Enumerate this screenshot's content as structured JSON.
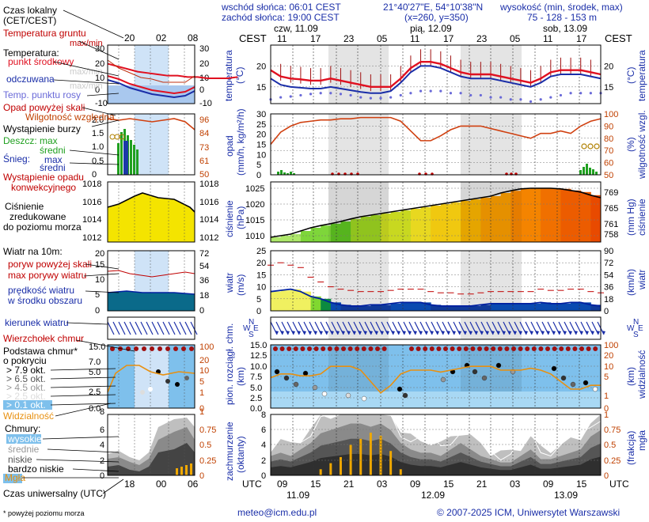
{
  "header": {
    "sunrise": "wschód słońca: 06:01 CEST",
    "sunset": "zachód słońca: 19:00 CEST",
    "coords": "21°40'27\"E, 54°10'38\"N",
    "grid": "(x=260, y=350)",
    "height_label": "wysokość (min, środek, max)",
    "height_values": "75 - 128 - 153 m"
  },
  "time_axis": {
    "tz_label": "CEST",
    "day_labels": [
      "czw, 11.09",
      "pią, 12.09",
      "sob, 13.09"
    ],
    "hour_ticks_top": [
      "11",
      "17",
      "23",
      "05",
      "11",
      "17",
      "23",
      "05",
      "11",
      "17"
    ],
    "utc_label": "UTC",
    "hour_ticks_bottom": [
      "09",
      "15",
      "21",
      "03",
      "09",
      "15",
      "21",
      "03",
      "09",
      "15"
    ],
    "date_labels_bottom": [
      "11.09",
      "12.09",
      "13.09"
    ]
  },
  "legend": {
    "local_time": "Czas lokalny",
    "local_time2": "(CET/CEST)",
    "local_ticks": [
      "20",
      "02",
      "08"
    ],
    "soil_temp": "Temperatura gruntu",
    "soil_sub": "max/min",
    "temp": "Temperatura:",
    "mid_point": "punkt środkowy",
    "max_min": "max/min",
    "perceived": "odczuwana",
    "dew": "Temp. punktu rosy",
    "precip_over": "Opad powyżej skali",
    "rel_hum": "Wilgotność względna",
    "storm": "Wystąpienie burzy",
    "rain": "Deszcz: max",
    "rain_avg": "średni",
    "snow": "Śnieg:",
    "snow_max": "max",
    "snow_avg": "średni",
    "conv": "Wystąpienie opadu",
    "conv2": "konwekcyjnego",
    "pressure": "Ciśnienie",
    "pressure2": "zredukowane",
    "pressure3": "do poziomu morza",
    "wind": "Wiatr na 10m:",
    "gust_over": "poryw powyżej skali",
    "gust_max": "max porywy wiatru",
    "wind_speed": "prędkość wiatru",
    "wind_speed2": "w środku obszaru",
    "wind_dir": "kierunek wiatru",
    "cloud_top": "Wierzchołek chmur",
    "cloud_base": "Podstawa chmur*",
    "cloud_base2": "o pokryciu",
    "okt": [
      "> 7.9 okt.",
      "> 6.5 okt.",
      "> 4.5 okt.",
      "> 2.5 okt.",
      "> 0.1 okt."
    ],
    "visibility": "Widzialność",
    "clouds": "Chmury:",
    "cloud_levels": [
      "wysokie",
      "średnie",
      "niskie",
      "bardzo niskie"
    ],
    "fog": "Mgła",
    "utc_time": "Czas uniwersalny (UTC)",
    "utc_ticks": [
      "18",
      "00",
      "06"
    ],
    "footnote": "* powyżej poziomu morza"
  },
  "panel_labels": {
    "temperature": "temperatura",
    "temp_unit": "(°C)",
    "precip": "opad",
    "precip_unit": "(mm/h, kg/m²/h)",
    "humidity": "wilgotność wzgl.",
    "humidity_unit": "(%)",
    "pressure": "ciśnienie",
    "pressure_unit": "(hPa)",
    "pressure_unit2": "(mm Hg)",
    "wind": "wiatr",
    "wind_unit": "(m/s)",
    "wind_unit2": "(km/h)",
    "cloud_base": "pion. rozciągł. chm.",
    "cloud_base_unit": "(km)",
    "visibility": "widzialność",
    "visibility_unit": "(km)",
    "cloud_cover": "zachmurzenie",
    "cloud_cover_unit": "(oktanty)",
    "fog": "mgła",
    "fog_unit": "(frakcja)"
  },
  "footer": {
    "email": "meteo@icm.edu.pl",
    "copyright": "© 2007-2025 ICM, Uniwersytet Warszawski"
  },
  "chart_data": [
    {
      "type": "line",
      "title": "",
      "ylabel": "temperatura (°C)",
      "ylim": [
        11,
        25
      ],
      "y_ticks": [
        15,
        20
      ],
      "series": [
        {
          "name": "temperatura",
          "values": [
            19,
            17.5,
            17,
            16.8,
            16.5,
            16.5,
            17,
            16.5,
            16,
            15.5,
            15,
            15,
            15,
            17,
            19.5,
            21,
            21,
            20.5,
            19.5,
            18.5,
            18,
            18,
            18,
            17.5,
            17,
            16.5,
            16,
            17,
            18.5,
            19,
            19,
            19,
            18.5,
            18
          ]
        },
        {
          "name": "odczuwana",
          "values": [
            17,
            15.5,
            15,
            14.8,
            14.6,
            14.6,
            15,
            14.6,
            14.2,
            13.8,
            13.5,
            13.5,
            14,
            16,
            18.5,
            20,
            20,
            19.5,
            18.5,
            17.5,
            17,
            17,
            17,
            16.5,
            16,
            15.5,
            15,
            16,
            17.5,
            18,
            18,
            18,
            17.5,
            17
          ]
        },
        {
          "name": "punkt rosy",
          "values": [
            13.5,
            14,
            14.2,
            14.5,
            14.8,
            15,
            15,
            14.8,
            14.5,
            14,
            13.8,
            13.8,
            14,
            14.5,
            15,
            15.5,
            15.5,
            15.5,
            15,
            15,
            14.5,
            14.5,
            14,
            14,
            13.5,
            13.5,
            13,
            13.5,
            14,
            14.5,
            15,
            15,
            15,
            15
          ]
        }
      ]
    },
    {
      "type": "line",
      "title": "",
      "ylabel": "wilgotność wzgl. (%)",
      "ylim": [
        50,
        100
      ],
      "y_ticks": [
        50,
        60,
        70,
        80,
        90,
        100
      ],
      "secondary_ylabel": "opad (mm/h, kg/m²/h)",
      "secondary_ticks": [
        0,
        5,
        10,
        15,
        20,
        25,
        30
      ],
      "series": [
        {
          "name": "wilgotność",
          "values": [
            75,
            85,
            90,
            93,
            94,
            95,
            95,
            96,
            96,
            97,
            97,
            97,
            97,
            94,
            86,
            78,
            78,
            82,
            87,
            90,
            90,
            90,
            88,
            86,
            84,
            82,
            80,
            84,
            84,
            86,
            84,
            90,
            94,
            96
          ]
        }
      ]
    },
    {
      "type": "area",
      "title": "",
      "ylabel": "ciśnienie (hPa)",
      "ylim": [
        1008,
        1027
      ],
      "y_ticks": [
        1010,
        1015,
        1020,
        1025
      ],
      "secondary_ylabel": "(mm Hg)",
      "secondary_ticks": [
        758,
        761,
        765,
        769
      ],
      "series": [
        {
          "name": "ciśnienie",
          "values": [
            1009.5,
            1010,
            1010.5,
            1011.5,
            1012.5,
            1013.2,
            1013.8,
            1014.5,
            1015.3,
            1016,
            1016.5,
            1017,
            1017.5,
            1018,
            1018.5,
            1019,
            1019.5,
            1020,
            1020.5,
            1021,
            1021.5,
            1022,
            1022.5,
            1023.5,
            1024.2,
            1024.8,
            1025,
            1025,
            1025,
            1024.8,
            1024.3,
            1023.8,
            1022.8,
            1022
          ]
        }
      ]
    },
    {
      "type": "area",
      "title": "",
      "ylabel": "wiatr (m/s)",
      "ylim": [
        0,
        25
      ],
      "y_ticks": [
        0,
        5,
        10,
        15,
        20,
        25
      ],
      "secondary_ylabel": "(km/h)",
      "secondary_ticks": [
        0,
        18,
        36,
        54,
        72,
        90
      ],
      "series": [
        {
          "name": "prędkość",
          "values": [
            8,
            8.5,
            9,
            8,
            6,
            5,
            3.5,
            2.5,
            2,
            2,
            2.5,
            2.5,
            3,
            3.5,
            3.5,
            3.5,
            2.5,
            2,
            2,
            2,
            2,
            2.5,
            3,
            3,
            3,
            3,
            3,
            3.5,
            3,
            3,
            3.5,
            3.5,
            2.5,
            2
          ]
        },
        {
          "name": "porywy",
          "values": [
            19,
            20,
            19,
            18,
            14,
            12,
            10,
            9,
            8.5,
            8,
            8,
            8,
            8.5,
            9,
            9,
            9,
            8,
            7.5,
            7.5,
            7,
            7,
            7.5,
            8,
            8,
            8,
            8,
            8,
            9,
            8.5,
            8.5,
            9,
            9,
            8,
            7.5
          ]
        }
      ]
    },
    {
      "type": "line",
      "title": "",
      "ylabel": "pion. rozciągł. chm. (km)",
      "ylim": [
        0,
        15
      ],
      "y_ticks": [
        0.0,
        2.5,
        5.0,
        7.5,
        10.0,
        12.5,
        15.0
      ],
      "secondary_ylabel": "widzialność (km)",
      "secondary_ticks": [
        0,
        1,
        5,
        10,
        20,
        100
      ],
      "series": [
        {
          "name": "widzialność",
          "values": [
            8,
            9,
            9,
            8.5,
            8.5,
            9,
            11,
            11,
            11,
            10,
            7,
            4,
            6,
            9,
            10,
            10,
            10,
            9.5,
            10,
            10.5,
            11,
            11,
            11,
            10,
            10,
            10,
            10.5,
            10,
            9,
            7,
            5,
            5,
            6,
            6
          ]
        }
      ]
    },
    {
      "type": "area",
      "title": "",
      "ylabel": "zachmurzenie (oktanty)",
      "ylim": [
        0,
        8
      ],
      "y_ticks": [
        0,
        2,
        4,
        6,
        8
      ],
      "secondary_ylabel": "mgła (frakcja)",
      "secondary_ticks": [
        0,
        0.25,
        0.5,
        0.75,
        1
      ],
      "series": [
        {
          "name": "zachmurzenie",
          "values": [
            3,
            3.5,
            3,
            4,
            5,
            6.5,
            7,
            7.5,
            8,
            8,
            7.5,
            8,
            7,
            5,
            4,
            3.5,
            3.5,
            3,
            4,
            5,
            4,
            3,
            2.5,
            2,
            2,
            3,
            4,
            2.5,
            2.5,
            3,
            3.5,
            4,
            6,
            7
          ]
        },
        {
          "name": "mgła",
          "values": [
            0,
            0,
            0,
            0,
            0,
            0.1,
            0.2,
            0.3,
            0.5,
            0.6,
            0.7,
            0.65,
            0.4,
            0.1,
            0,
            0,
            0,
            0,
            0,
            0,
            0,
            0,
            0,
            0,
            0,
            0,
            0,
            0,
            0,
            0,
            0,
            0,
            0,
            0
          ]
        }
      ]
    }
  ]
}
